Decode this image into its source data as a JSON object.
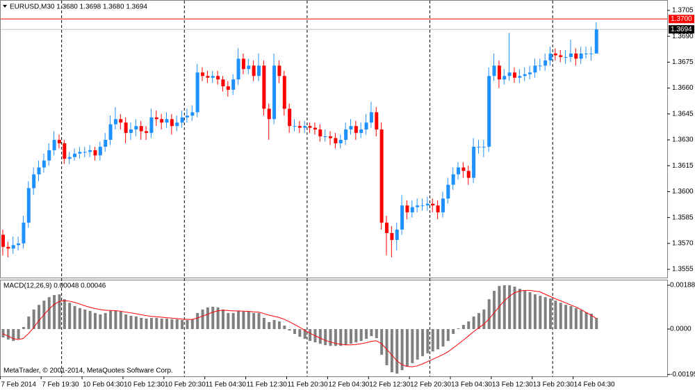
{
  "chart_data": {
    "type": "candlestick",
    "title": "EURUSD,M30  1.3680 1.3698 1.3680 1.3694",
    "bull_color": "#1e90ff",
    "bear_color": "#ff0000",
    "candles": [
      [
        1.3575,
        1.3578,
        1.3563,
        1.3568
      ],
      [
        1.3568,
        1.3571,
        1.3562,
        1.3567
      ],
      [
        1.3567,
        1.3574,
        1.3564,
        1.3569
      ],
      [
        1.3569,
        1.3574,
        1.3566,
        1.357
      ],
      [
        1.357,
        1.3586,
        1.3567,
        1.3582
      ],
      [
        1.3582,
        1.3606,
        1.3579,
        1.3602
      ],
      [
        1.3602,
        1.3614,
        1.3598,
        1.361
      ],
      [
        1.361,
        1.3618,
        1.3606,
        1.3614
      ],
      [
        1.3614,
        1.3622,
        1.3611,
        1.3618
      ],
      [
        1.3618,
        1.3628,
        1.3615,
        1.3624
      ],
      [
        1.3624,
        1.3635,
        1.3621,
        1.363
      ],
      [
        1.363,
        1.3633,
        1.3625,
        1.3628
      ],
      [
        1.3628,
        1.363,
        1.3616,
        1.3619
      ],
      [
        1.3619,
        1.3623,
        1.3616,
        1.362
      ],
      [
        1.362,
        1.3625,
        1.3618,
        1.3622
      ],
      [
        1.3622,
        1.3626,
        1.3619,
        1.3623
      ],
      [
        1.3623,
        1.3626,
        1.362,
        1.3623
      ],
      [
        1.3623,
        1.3627,
        1.362,
        1.3624
      ],
      [
        1.3624,
        1.3626,
        1.3618,
        1.3621
      ],
      [
        1.3621,
        1.3629,
        1.3618,
        1.3626
      ],
      [
        1.3626,
        1.3634,
        1.3623,
        1.363
      ],
      [
        1.363,
        1.3644,
        1.3627,
        1.3639
      ],
      [
        1.3639,
        1.3649,
        1.3636,
        1.3642
      ],
      [
        1.3642,
        1.3645,
        1.3636,
        1.364
      ],
      [
        1.364,
        1.3643,
        1.3628,
        1.3634
      ],
      [
        1.3634,
        1.364,
        1.363,
        1.3636
      ],
      [
        1.3636,
        1.3642,
        1.3632,
        1.3638
      ],
      [
        1.3638,
        1.3641,
        1.363,
        1.3635
      ],
      [
        1.3635,
        1.3638,
        1.363,
        1.3634
      ],
      [
        1.3634,
        1.3648,
        1.3631,
        1.3643
      ],
      [
        1.3643,
        1.3647,
        1.3638,
        1.3642
      ],
      [
        1.3642,
        1.3645,
        1.3636,
        1.364
      ],
      [
        1.364,
        1.3646,
        1.3637,
        1.3642
      ],
      [
        1.3642,
        1.3645,
        1.3633,
        1.3638
      ],
      [
        1.3638,
        1.3644,
        1.3635,
        1.364
      ],
      [
        1.364,
        1.3647,
        1.3637,
        1.3643
      ],
      [
        1.3643,
        1.3648,
        1.364,
        1.3644
      ],
      [
        1.3644,
        1.365,
        1.3641,
        1.3646
      ],
      [
        1.3646,
        1.3674,
        1.3643,
        1.3669
      ],
      [
        1.3669,
        1.3672,
        1.3664,
        1.3667
      ],
      [
        1.3667,
        1.367,
        1.3663,
        1.3666
      ],
      [
        1.3666,
        1.367,
        1.3663,
        1.3667
      ],
      [
        1.3667,
        1.367,
        1.3662,
        1.3665
      ],
      [
        1.3665,
        1.3667,
        1.3658,
        1.3661
      ],
      [
        1.3661,
        1.3664,
        1.3655,
        1.3659
      ],
      [
        1.3659,
        1.3668,
        1.3656,
        1.3665
      ],
      [
        1.3665,
        1.3683,
        1.3662,
        1.3677
      ],
      [
        1.3677,
        1.368,
        1.3668,
        1.3671
      ],
      [
        1.3671,
        1.3677,
        1.3668,
        1.3673
      ],
      [
        1.3673,
        1.3676,
        1.3664,
        1.3667
      ],
      [
        1.3667,
        1.368,
        1.3664,
        1.3673
      ],
      [
        1.3673,
        1.3676,
        1.3644,
        1.3648
      ],
      [
        1.3648,
        1.3651,
        1.363,
        1.3642
      ],
      [
        1.3642,
        1.368,
        1.3639,
        1.3673
      ],
      [
        1.3673,
        1.3676,
        1.3663,
        1.3667
      ],
      [
        1.3667,
        1.367,
        1.3644,
        1.3648
      ],
      [
        1.3648,
        1.3651,
        1.3634,
        1.3638
      ],
      [
        1.3638,
        1.3642,
        1.3635,
        1.3638
      ],
      [
        1.3638,
        1.3641,
        1.3634,
        1.3637
      ],
      [
        1.3637,
        1.3641,
        1.3634,
        1.3638
      ],
      [
        1.3638,
        1.364,
        1.3634,
        1.3637
      ],
      [
        1.3637,
        1.364,
        1.3633,
        1.3636
      ],
      [
        1.3636,
        1.3639,
        1.3629,
        1.3632
      ],
      [
        1.3632,
        1.3636,
        1.3629,
        1.3632
      ],
      [
        1.3632,
        1.3635,
        1.3627,
        1.3631
      ],
      [
        1.3631,
        1.3634,
        1.3625,
        1.3628
      ],
      [
        1.3628,
        1.3633,
        1.3625,
        1.363
      ],
      [
        1.363,
        1.364,
        1.3627,
        1.3636
      ],
      [
        1.3636,
        1.3642,
        1.3633,
        1.3638
      ],
      [
        1.3638,
        1.3641,
        1.363,
        1.3634
      ],
      [
        1.3634,
        1.364,
        1.3631,
        1.3636
      ],
      [
        1.3636,
        1.3645,
        1.3633,
        1.364
      ],
      [
        1.364,
        1.3652,
        1.3637,
        1.3646
      ],
      [
        1.3646,
        1.3649,
        1.3632,
        1.3636
      ],
      [
        1.3636,
        1.364,
        1.3578,
        1.3582
      ],
      [
        1.3582,
        1.3586,
        1.3563,
        1.3576
      ],
      [
        1.3576,
        1.358,
        1.3562,
        1.3572
      ],
      [
        1.3572,
        1.3582,
        1.3566,
        1.3578
      ],
      [
        1.3578,
        1.3598,
        1.3575,
        1.3592
      ],
      [
        1.3592,
        1.3595,
        1.3584,
        1.3588
      ],
      [
        1.3588,
        1.3595,
        1.3585,
        1.3591
      ],
      [
        1.3591,
        1.3596,
        1.3588,
        1.3592
      ],
      [
        1.3592,
        1.3596,
        1.3589,
        1.3592
      ],
      [
        1.3592,
        1.3597,
        1.3589,
        1.3593
      ],
      [
        1.3593,
        1.3596,
        1.3588,
        1.3592
      ],
      [
        1.3592,
        1.3595,
        1.3584,
        1.3588
      ],
      [
        1.3588,
        1.36,
        1.3585,
        1.3596
      ],
      [
        1.3596,
        1.3608,
        1.3593,
        1.3604
      ],
      [
        1.3604,
        1.3614,
        1.3601,
        1.361
      ],
      [
        1.361,
        1.3617,
        1.3607,
        1.3614
      ],
      [
        1.3614,
        1.3617,
        1.3608,
        1.3612
      ],
      [
        1.3612,
        1.3615,
        1.3604,
        1.3608
      ],
      [
        1.3608,
        1.3631,
        1.3605,
        1.3626
      ],
      [
        1.3626,
        1.363,
        1.3622,
        1.3626
      ],
      [
        1.3626,
        1.363,
        1.362,
        1.3626
      ],
      [
        1.3626,
        1.3672,
        1.3623,
        1.3667
      ],
      [
        1.3667,
        1.368,
        1.3664,
        1.3673
      ],
      [
        1.3673,
        1.3676,
        1.366,
        1.3665
      ],
      [
        1.3665,
        1.3671,
        1.3662,
        1.3667
      ],
      [
        1.3667,
        1.3692,
        1.3664,
        1.3669
      ],
      [
        1.3669,
        1.3672,
        1.3663,
        1.3666
      ],
      [
        1.3666,
        1.3671,
        1.3663,
        1.3667
      ],
      [
        1.3667,
        1.3672,
        1.3664,
        1.3668
      ],
      [
        1.3668,
        1.3673,
        1.3665,
        1.3669
      ],
      [
        1.3669,
        1.3677,
        1.3666,
        1.3673
      ],
      [
        1.3673,
        1.3677,
        1.367,
        1.3673
      ],
      [
        1.3673,
        1.368,
        1.367,
        1.3676
      ],
      [
        1.3676,
        1.3684,
        1.3673,
        1.368
      ],
      [
        1.368,
        1.3683,
        1.3676,
        1.3679
      ],
      [
        1.3679,
        1.3682,
        1.3675,
        1.3678
      ],
      [
        1.3678,
        1.3682,
        1.3674,
        1.3678
      ],
      [
        1.3678,
        1.3688,
        1.3675,
        1.368
      ],
      [
        1.368,
        1.3683,
        1.3673,
        1.3677
      ],
      [
        1.3677,
        1.3684,
        1.3674,
        1.368
      ],
      [
        1.368,
        1.3684,
        1.3677,
        1.368
      ],
      [
        1.368,
        1.3684,
        1.3676,
        1.368
      ],
      [
        1.368,
        1.3698,
        1.368,
        1.3694
      ]
    ],
    "ylim": [
      1.35506,
      1.37102
    ],
    "yticks": [
      1.3705,
      {
        "value": 1.369,
        "label": "1.3690"
      },
      1.3675,
      {
        "value": 1.366,
        "label": "1.3660"
      },
      1.3645,
      {
        "value": 1.363,
        "label": "1.3630"
      },
      1.3615,
      {
        "value": 1.36,
        "label": "1.3600"
      },
      1.3585,
      {
        "value": 1.357,
        "label": "1.3570"
      },
      1.3555
    ],
    "levels": [
      {
        "value": 1.37,
        "label": "1.3700",
        "color": "#ff0000",
        "line_color": "#ff0000"
      },
      {
        "value": 1.3694,
        "color": "#000000",
        "line_color": "#c0c0c0"
      }
    ],
    "xticks": [
      {
        "value": 0,
        "label": "7 Feb 2014"
      },
      {
        "value": 8,
        "label": "7 Feb 19:30"
      },
      {
        "value": 16,
        "label": "10 Feb 04:30"
      },
      {
        "value": 24,
        "label": "10 Feb 12:30"
      },
      {
        "value": 32,
        "label": "10 Feb 20:30"
      },
      {
        "value": 40,
        "label": "11 Feb 04:30"
      },
      {
        "value": 48,
        "label": "11 Feb 12:30"
      },
      {
        "value": 56,
        "label": "11 Feb 20:30"
      },
      {
        "value": 64,
        "label": "12 Feb 04:30"
      },
      {
        "value": 72,
        "label": "12 Feb 12:30"
      },
      {
        "value": 80,
        "label": "12 Feb 20:30"
      },
      {
        "value": 88,
        "label": "13 Feb 04:30"
      },
      {
        "value": 96,
        "label": "13 Feb 12:30"
      },
      {
        "value": 104,
        "label": "13 Feb 20:30"
      },
      {
        "value": 112,
        "label": "14 Feb 04:30"
      }
    ],
    "separators": [
      12,
      36,
      60,
      84,
      108
    ],
    "indicator": {
      "type": "macd",
      "title": "MACD(12,26,9) 0.00048 0.00046",
      "ylim": [
        -0.002,
        0.00209
      ],
      "yticks": [
        0.00188,
        {
          "value": 0,
          "label": "0.0000"
        },
        -0.00195
      ],
      "series": [
        {
          "type": "bar",
          "color": "#808080",
          "values": [
            -0.00036,
            -0.00045,
            -0.00051,
            -0.00042,
            9e-05,
            0.00054,
            0.00084,
            0.00104,
            0.00122,
            0.00137,
            0.00146,
            0.00149,
            0.00128,
            0.00113,
            0.00099,
            0.0009,
            0.00084,
            0.00078,
            0.00069,
            0.00063,
            0.00069,
            0.00078,
            0.00078,
            0.00075,
            0.00063,
            0.00057,
            0.00054,
            0.00048,
            0.00045,
            0.00048,
            0.00048,
            0.00045,
            0.00045,
            0.00042,
            0.00042,
            0.00039,
            0.00039,
            0.00042,
            0.00069,
            0.00084,
            0.00093,
            0.00096,
            0.00093,
            0.00084,
            0.00069,
            0.00069,
            0.00078,
            0.00075,
            0.00075,
            0.00069,
            0.00069,
            0.00048,
            0.0003,
            0.00039,
            0.00033,
            0.00015,
            -6e-05,
            -0.00021,
            -0.00033,
            -0.00042,
            -0.00051,
            -0.00057,
            -0.00063,
            -0.00069,
            -0.00072,
            -0.00072,
            -0.00072,
            -0.00069,
            -0.00063,
            -0.00057,
            -0.00051,
            -0.00042,
            -0.0003,
            -0.00039,
            -0.0011,
            -0.00155,
            -0.00185,
            -0.00191,
            -0.00176,
            -0.00161,
            -0.00146,
            -0.00131,
            -0.00116,
            -0.00104,
            -0.00096,
            -0.00087,
            -0.00075,
            -0.00051,
            -0.00021,
            3e-05,
            0.00018,
            0.00033,
            0.00054,
            0.00069,
            0.00084,
            0.00128,
            0.00164,
            0.00185,
            0.00188,
            0.00188,
            0.00182,
            0.00173,
            0.00164,
            0.00158,
            0.00149,
            0.00143,
            0.00137,
            0.00131,
            0.00122,
            0.00113,
            0.00104,
            0.00099,
            0.0009,
            0.00081,
            0.00072,
            0.00066,
            0.00048
          ]
        },
        {
          "type": "line",
          "color": "#ff0000",
          "values": [
            -0.0002,
            -0.0003,
            -0.0004,
            -0.00045,
            -0.0004,
            -0.0002,
            5e-05,
            0.00035,
            0.0006,
            0.00085,
            0.00105,
            0.00118,
            0.00122,
            0.0012,
            0.00115,
            0.00108,
            0.001,
            0.00094,
            0.00088,
            0.00084,
            0.00081,
            0.0008,
            0.00079,
            0.00077,
            0.00073,
            0.0007,
            0.00066,
            0.00062,
            0.00058,
            0.00055,
            0.00053,
            0.00051,
            0.00049,
            0.00047,
            0.00045,
            0.00043,
            0.00042,
            0.00041,
            0.00047,
            0.00055,
            0.00063,
            0.00072,
            0.00078,
            0.00081,
            0.0008,
            0.00078,
            0.00078,
            0.00077,
            0.00076,
            0.00074,
            0.00073,
            0.00067,
            0.0006,
            0.00055,
            0.0005,
            0.00042,
            0.00032,
            0.0002,
            8e-05,
            -5e-05,
            -0.00017,
            -0.00028,
            -0.00038,
            -0.00048,
            -0.00055,
            -0.00061,
            -0.00065,
            -0.00068,
            -0.00068,
            -0.00066,
            -0.00063,
            -0.00059,
            -0.00053,
            -0.0005,
            -0.00062,
            -0.00085,
            -0.0011,
            -0.00135,
            -0.00152,
            -0.0016,
            -0.00162,
            -0.00158,
            -0.0015,
            -0.0014,
            -0.0013,
            -0.0012,
            -0.0011,
            -0.00098,
            -0.00082,
            -0.00065,
            -0.00048,
            -0.0003,
            -0.00012,
            5e-05,
            0.0002,
            0.00042,
            0.00068,
            0.00095,
            0.0012,
            0.0014,
            0.00155,
            0.00163,
            0.00166,
            0.00166,
            0.00163,
            0.0016,
            0.0015,
            0.0014,
            0.0013,
            0.00122,
            0.00113,
            0.00104,
            0.00095,
            0.00084,
            0.00072,
            0.0006,
            0.00046
          ]
        }
      ]
    },
    "footer": "MetaTrader, © 2001-2014, MetaQuotes Software Corp."
  }
}
